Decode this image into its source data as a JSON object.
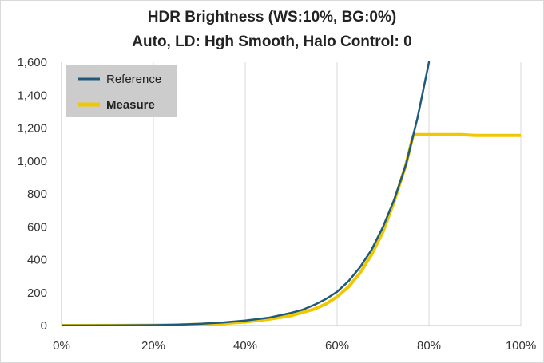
{
  "chart_data": {
    "type": "line",
    "title": "HDR Brightness (WS:10%, BG:0%)",
    "subtitle": "Auto, LD: Hgh Smooth, Halo Control: 0",
    "xlabel": "",
    "ylabel": "",
    "xlim": [
      0,
      100
    ],
    "ylim": [
      0,
      1600
    ],
    "x_ticks": [
      "0%",
      "20%",
      "40%",
      "60%",
      "80%",
      "100%"
    ],
    "y_ticks": [
      "0",
      "200",
      "400",
      "600",
      "800",
      "1,000",
      "1,200",
      "1,400",
      "1,600"
    ],
    "grid": "vertical",
    "legend_position": "top-left",
    "series": [
      {
        "name": "Reference",
        "color": "#1f5a7a",
        "x": [
          0,
          10,
          20,
          25,
          30,
          35,
          40,
          45,
          50,
          52.5,
          55,
          57.5,
          60,
          62.5,
          65,
          67.5,
          70,
          72.5,
          75,
          77.5,
          80
        ],
        "y": [
          0,
          0.3,
          2.5,
          5,
          10,
          18,
          30,
          47,
          77,
          96,
          125,
          160,
          205,
          270,
          355,
          460,
          600,
          770,
          980,
          1260,
          1600
        ]
      },
      {
        "name": "Measure",
        "color": "#f0c800",
        "x": [
          0,
          10,
          20,
          25,
          30,
          35,
          40,
          45,
          50,
          52.5,
          55,
          57.5,
          60,
          62.5,
          65,
          67.5,
          70,
          72.5,
          75,
          76.5,
          77,
          80,
          85,
          87,
          90,
          95,
          100
        ],
        "y": [
          0,
          0.3,
          2,
          4,
          7,
          12,
          22,
          38,
          60,
          80,
          100,
          130,
          175,
          235,
          320,
          430,
          570,
          760,
          980,
          1150,
          1160,
          1160,
          1160,
          1160,
          1155,
          1155,
          1155
        ]
      }
    ]
  }
}
